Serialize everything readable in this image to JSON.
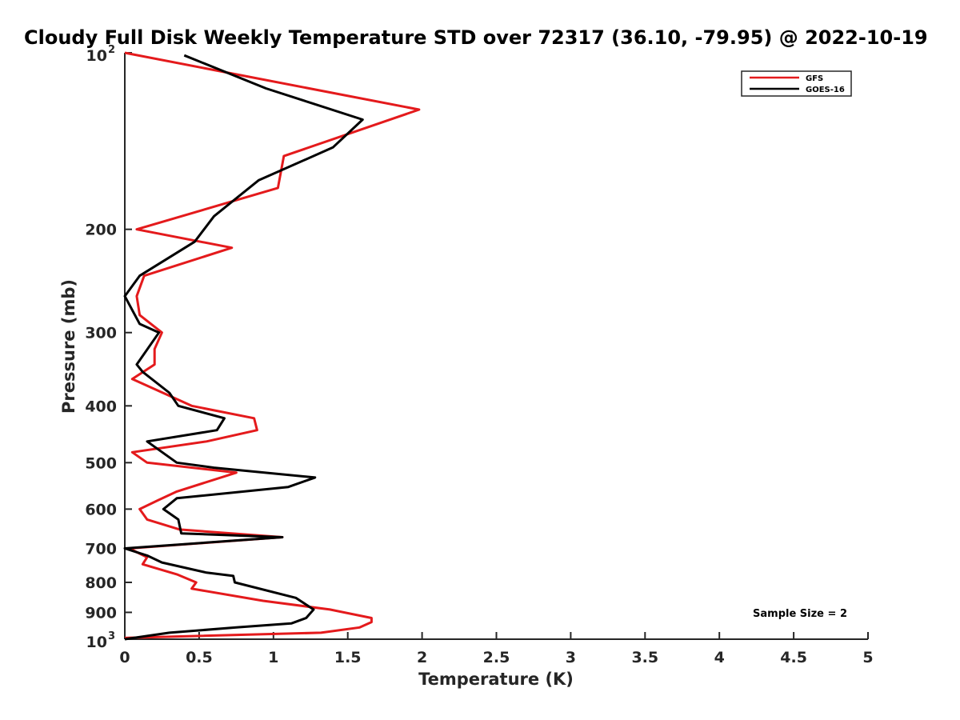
{
  "chart_data": {
    "type": "line",
    "title": "Cloudy Full Disk Weekly Temperature STD over 72317 (36.10, -79.95) @ 2022-10-19",
    "xlabel": "Temperature (K)",
    "ylabel": "Pressure (mb)",
    "xlim": [
      0,
      5
    ],
    "ylim": [
      100,
      1000
    ],
    "y_scale": "log",
    "y_reversed": true,
    "grid": false,
    "legend_position": "top-right",
    "x_ticks": [
      "0",
      "0.5",
      "1",
      "1.5",
      "2",
      "2.5",
      "3",
      "3.5",
      "4",
      "4.5",
      "5"
    ],
    "y_ticks": [
      {
        "value": 100,
        "base": "10",
        "exp": "2"
      },
      {
        "value": 200,
        "label": "200"
      },
      {
        "value": 300,
        "label": "300"
      },
      {
        "value": 400,
        "label": "400"
      },
      {
        "value": 500,
        "label": "500"
      },
      {
        "value": 600,
        "label": "600"
      },
      {
        "value": 700,
        "label": "700"
      },
      {
        "value": 800,
        "label": "800"
      },
      {
        "value": 900,
        "label": "900"
      },
      {
        "value": 1000,
        "base": "10",
        "exp": "3"
      }
    ],
    "series": [
      {
        "name": "GFS",
        "color": "#e41a1c",
        "points": [
          [
            0.0,
            100
          ],
          [
            1.98,
            125
          ],
          [
            1.07,
            150
          ],
          [
            1.03,
            170
          ],
          [
            0.08,
            200
          ],
          [
            0.72,
            215
          ],
          [
            0.13,
            240
          ],
          [
            0.08,
            260
          ],
          [
            0.1,
            280
          ],
          [
            0.25,
            300
          ],
          [
            0.2,
            320
          ],
          [
            0.2,
            340
          ],
          [
            0.05,
            360
          ],
          [
            0.45,
            400
          ],
          [
            0.87,
            420
          ],
          [
            0.89,
            440
          ],
          [
            0.55,
            460
          ],
          [
            0.05,
            480
          ],
          [
            0.15,
            500
          ],
          [
            0.75,
            520
          ],
          [
            0.35,
            560
          ],
          [
            0.22,
            580
          ],
          [
            0.1,
            600
          ],
          [
            0.15,
            625
          ],
          [
            0.37,
            650
          ],
          [
            1.06,
            670
          ],
          [
            0.03,
            700
          ],
          [
            0.15,
            725
          ],
          [
            0.12,
            745
          ],
          [
            0.35,
            775
          ],
          [
            0.48,
            800
          ],
          [
            0.45,
            820
          ],
          [
            0.93,
            860
          ],
          [
            1.38,
            890
          ],
          [
            1.66,
            920
          ],
          [
            1.66,
            935
          ],
          [
            1.58,
            955
          ],
          [
            1.32,
            975
          ],
          [
            0.0,
            995
          ]
        ]
      },
      {
        "name": "GOES-16",
        "color": "#000000",
        "points": [
          [
            0.4,
            101
          ],
          [
            0.95,
            115
          ],
          [
            1.6,
            130
          ],
          [
            1.4,
            145
          ],
          [
            0.9,
            165
          ],
          [
            0.6,
            190
          ],
          [
            0.47,
            210
          ],
          [
            0.1,
            240
          ],
          [
            0.0,
            260
          ],
          [
            0.1,
            290
          ],
          [
            0.23,
            300
          ],
          [
            0.08,
            340
          ],
          [
            0.12,
            350
          ],
          [
            0.3,
            380
          ],
          [
            0.36,
            400
          ],
          [
            0.67,
            420
          ],
          [
            0.62,
            440
          ],
          [
            0.15,
            460
          ],
          [
            0.35,
            500
          ],
          [
            0.6,
            510
          ],
          [
            1.28,
            530
          ],
          [
            1.1,
            550
          ],
          [
            0.35,
            575
          ],
          [
            0.26,
            600
          ],
          [
            0.36,
            625
          ],
          [
            0.38,
            660
          ],
          [
            1.06,
            670
          ],
          [
            0.0,
            700
          ],
          [
            0.15,
            720
          ],
          [
            0.25,
            740
          ],
          [
            0.55,
            770
          ],
          [
            0.73,
            780
          ],
          [
            0.74,
            800
          ],
          [
            1.15,
            850
          ],
          [
            1.27,
            890
          ],
          [
            1.22,
            920
          ],
          [
            1.12,
            940
          ],
          [
            0.75,
            955
          ],
          [
            0.3,
            975
          ],
          [
            0.0,
            1000
          ]
        ]
      }
    ],
    "annotation": "Sample Size = 2"
  }
}
